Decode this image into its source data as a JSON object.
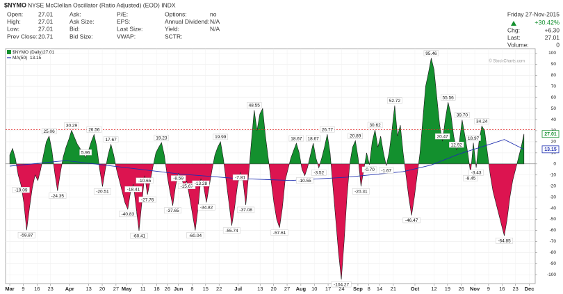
{
  "header": {
    "symbol": "$NYMO",
    "description": "NYSE McClellan Oscillator (Ratio Adjusted) (EOD) INDX",
    "columns": [
      [
        {
          "label": "Open:",
          "value": "27.01"
        },
        {
          "label": "High:",
          "value": "27.01"
        },
        {
          "label": "Low:",
          "value": "27.01"
        },
        {
          "label": "Prev Close:",
          "value": "20.71"
        }
      ],
      [
        {
          "label": "Ask:"
        },
        {
          "label": "Ask Size:"
        },
        {
          "label": "Bid:"
        },
        {
          "label": "Bid Size:"
        }
      ],
      [
        {
          "label": "P/E:"
        },
        {
          "label": "EPS:"
        },
        {
          "label": "Last Size:"
        },
        {
          "label": "VWAP:"
        }
      ],
      [
        {
          "label": "Options:",
          "value": "no"
        },
        {
          "label": "Annual Dividend:",
          "value": "N/A"
        },
        {
          "label": "Yield:",
          "value": "N/A"
        },
        {
          "label": "SCTR:"
        }
      ]
    ],
    "date": "Friday 27-Nov-2015",
    "change_pct": "+30.42%",
    "right_fields": [
      {
        "label": "Chg:",
        "value": "+6.30"
      },
      {
        "label": "Last:",
        "value": "27.01"
      },
      {
        "label": "Volume:",
        "value": "0"
      }
    ],
    "watermark": "© StockCharts.com"
  },
  "chart_data": {
    "type": "area",
    "xlim": [
      -1.5,
      187
    ],
    "ylim": [
      -108,
      104
    ],
    "xticks": [
      {
        "value": 0,
        "label": "Mar"
      },
      {
        "value": 4.8,
        "label": "9"
      },
      {
        "value": 9.7,
        "label": "16"
      },
      {
        "value": 14.5,
        "label": "23"
      },
      {
        "value": 21.3,
        "label": "Apr"
      },
      {
        "value": 28.1,
        "label": "13"
      },
      {
        "value": 32.9,
        "label": "20"
      },
      {
        "value": 37.8,
        "label": "27"
      },
      {
        "value": 41.6,
        "label": "May"
      },
      {
        "value": 47.4,
        "label": "11"
      },
      {
        "value": 52.3,
        "label": "18"
      },
      {
        "value": 56.1,
        "label": "26"
      },
      {
        "value": 60.0,
        "label": "Jun"
      },
      {
        "value": 64.9,
        "label": "8"
      },
      {
        "value": 69.7,
        "label": "15"
      },
      {
        "value": 74.5,
        "label": "22"
      },
      {
        "value": 81.3,
        "label": "Jul"
      },
      {
        "value": 89.1,
        "label": "13"
      },
      {
        "value": 93.9,
        "label": "20"
      },
      {
        "value": 98.7,
        "label": "27"
      },
      {
        "value": 103.6,
        "label": "Aug"
      },
      {
        "value": 108.4,
        "label": "10"
      },
      {
        "value": 113.3,
        "label": "17"
      },
      {
        "value": 118.1,
        "label": "24"
      },
      {
        "value": 123.9,
        "label": "Sep"
      },
      {
        "value": 127.8,
        "label": "8"
      },
      {
        "value": 131.6,
        "label": "14"
      },
      {
        "value": 136.5,
        "label": "21"
      },
      {
        "value": 144.2,
        "label": "Oct"
      },
      {
        "value": 151.0,
        "label": "12"
      },
      {
        "value": 155.8,
        "label": "19"
      },
      {
        "value": 160.7,
        "label": "26"
      },
      {
        "value": 165.5,
        "label": "Nov"
      },
      {
        "value": 170.4,
        "label": "9"
      },
      {
        "value": 175.2,
        "label": "16"
      },
      {
        "value": 180.0,
        "label": "23"
      },
      {
        "value": 184.9,
        "label": "Dec"
      }
    ],
    "yticks": [
      100,
      90,
      80,
      70,
      60,
      50,
      40,
      30,
      20,
      10,
      0,
      -10,
      -20,
      -30,
      -40,
      -50,
      -60,
      -70,
      -80,
      -90,
      -100
    ],
    "grid": true,
    "reference_line": {
      "value": 31,
      "color": "#e02828"
    },
    "series": [
      {
        "name": "$NYMO (Daily)",
        "color_above": "#13902e",
        "color_below": "#dc1450",
        "x": [
          0,
          1,
          2,
          3,
          4,
          5,
          6,
          7,
          8,
          9,
          10,
          11,
          12,
          13,
          14,
          15,
          16,
          17,
          18,
          19,
          20,
          21,
          22,
          23,
          24,
          25,
          26,
          27,
          28,
          29,
          30,
          31,
          32,
          33,
          34,
          35,
          36,
          37,
          38,
          39,
          40,
          41,
          42,
          43,
          44,
          45,
          46,
          47,
          48,
          49,
          50,
          51,
          52,
          53,
          54,
          55,
          56,
          57,
          58,
          59,
          60,
          61,
          62,
          63,
          64,
          65,
          66,
          67,
          68,
          69,
          70,
          71,
          72,
          73,
          74,
          75,
          76,
          77,
          78,
          79,
          80,
          81,
          82,
          83,
          84,
          85,
          86,
          87,
          88,
          89,
          90,
          91,
          92,
          93,
          94,
          95,
          96,
          97,
          98,
          99,
          100,
          101,
          102,
          103,
          104,
          105,
          106,
          107,
          108,
          109,
          110,
          111,
          112,
          113,
          114,
          115,
          116,
          117,
          118,
          119,
          120,
          121,
          122,
          123,
          124,
          125,
          126,
          127,
          128,
          129,
          130,
          131,
          132,
          133,
          134,
          135,
          136,
          137,
          138,
          139,
          140,
          141,
          142,
          143,
          144,
          145,
          146,
          147,
          148,
          149,
          150,
          151,
          152,
          153,
          154,
          155,
          156,
          157,
          158,
          159,
          160,
          161,
          162,
          163,
          164,
          165,
          166,
          167,
          168,
          169,
          170,
          171,
          172,
          173,
          174,
          175,
          176,
          177,
          178,
          179,
          180,
          181,
          182,
          183
        ],
        "values": [
          8,
          14,
          5,
          -10,
          -19.09,
          -35,
          -59.87,
          -40,
          -22,
          -10,
          -15,
          -5,
          8,
          20,
          25.06,
          12,
          -8,
          -24.35,
          -8,
          6,
          15,
          22,
          30.29,
          24,
          18,
          14,
          10,
          5.96,
          12,
          20,
          26.56,
          15,
          -5,
          -20.51,
          -5,
          8,
          17.67,
          8,
          -5,
          -15,
          -25,
          -35,
          -40.83,
          -25,
          -18.41,
          -40,
          -60.41,
          -35,
          -10.65,
          -27.76,
          -15,
          -2,
          10,
          15,
          19.23,
          8,
          -10,
          -25,
          -37.65,
          -20,
          -8.59,
          -12,
          -20,
          -15.67,
          -30,
          -45,
          -60.04,
          -40,
          -13.28,
          -20,
          -34.82,
          -20,
          -5,
          8,
          15,
          19.99,
          5,
          -15,
          -35,
          -55.74,
          -40,
          -20,
          -7.81,
          -15,
          -37.08,
          -10,
          20,
          48.55,
          30,
          45,
          50,
          25,
          5,
          -15,
          -35,
          -50,
          -57.61,
          -40,
          -15,
          -5,
          5,
          12,
          18.67,
          10,
          -5,
          -10.55,
          -3,
          8,
          18.67,
          5,
          -3.52,
          5,
          15,
          26.77,
          10,
          -20,
          -50,
          -80,
          -104.27,
          -70,
          -30,
          0,
          15,
          20.89,
          5,
          -20.31,
          -5,
          10,
          -0.7,
          20,
          30.62,
          15,
          25,
          10,
          -1.67,
          10,
          30,
          52.72,
          25,
          35,
          10,
          -10,
          -30,
          -46.47,
          -30,
          -10,
          10,
          40,
          70,
          82,
          95.46,
          85,
          60,
          35,
          20.47,
          40,
          55.56,
          45,
          25,
          12.92,
          20,
          39.7,
          25,
          10,
          -8.45,
          18.97,
          -3.43,
          20,
          34.24,
          30,
          10,
          -10,
          -25,
          -35,
          -45,
          -55,
          -64.85,
          -50,
          -30,
          -15,
          -5,
          5,
          15,
          27.01
        ],
        "value_labels": [
          null,
          null,
          null,
          null,
          "-19.09",
          null,
          "-59.87",
          null,
          null,
          null,
          null,
          null,
          null,
          null,
          "25.06",
          null,
          null,
          "-24.35",
          null,
          null,
          null,
          null,
          "30.29",
          null,
          null,
          null,
          null,
          "5.96",
          null,
          null,
          "26.56",
          null,
          null,
          "-20.51",
          null,
          null,
          "17.67",
          null,
          null,
          null,
          null,
          null,
          "-40.83",
          null,
          "-18.41",
          null,
          "-60.41",
          null,
          "-10.65",
          "-27.76",
          null,
          null,
          null,
          null,
          "19.23",
          null,
          null,
          null,
          "-37.65",
          null,
          "-8.59",
          null,
          null,
          "-15.67",
          null,
          null,
          "-60.04",
          null,
          "-13.28",
          null,
          "-34.82",
          null,
          null,
          null,
          null,
          "19.99",
          null,
          null,
          null,
          "-55.74",
          null,
          null,
          "-7.81",
          null,
          "-37.08",
          null,
          null,
          "48.55",
          null,
          null,
          null,
          null,
          null,
          null,
          null,
          null,
          "-57.61",
          null,
          null,
          null,
          null,
          null,
          "18.67",
          null,
          null,
          "-10.55",
          null,
          null,
          "18.67",
          null,
          "-3.52",
          null,
          null,
          "26.77",
          null,
          null,
          null,
          null,
          "-104.27",
          null,
          null,
          null,
          null,
          "20.89",
          null,
          "-20.31",
          null,
          null,
          "-0.70",
          null,
          "30.62",
          null,
          null,
          null,
          "-1.67",
          null,
          null,
          "52.72",
          null,
          null,
          null,
          null,
          null,
          "-46.47",
          null,
          null,
          null,
          null,
          null,
          null,
          "95.46",
          null,
          null,
          null,
          "20.47",
          null,
          "55.56",
          null,
          null,
          "12.92",
          null,
          "39.70",
          null,
          null,
          "-8.45",
          "18.97",
          "-3.43",
          null,
          "34.24",
          null,
          null,
          null,
          null,
          null,
          null,
          null,
          "-64.85",
          null,
          null,
          null,
          null,
          null,
          null,
          null
        ]
      },
      {
        "name": "MA(50)",
        "color": "#1f2fb0",
        "x": [
          0,
          20,
          40,
          60,
          80,
          100,
          120,
          140,
          150,
          160,
          170,
          176,
          183
        ],
        "values": [
          -2,
          3,
          -3,
          -9,
          -13,
          -15,
          -12,
          -7,
          -1,
          9,
          17,
          22,
          13.15
        ]
      }
    ]
  }
}
